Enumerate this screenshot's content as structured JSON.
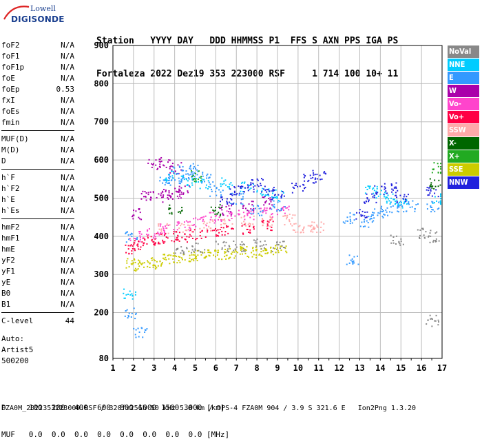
{
  "logo": {
    "top": "Lowell",
    "main": "DIGISONDE"
  },
  "header": {
    "line1": "Station   YYYY DAY   DDD HHMMSS P1  FFS S AXN PPS IGA PS",
    "line2": "Fortaleza 2022 Dez19 353 223000 RSF     1 714 100 10+ 11"
  },
  "params": [
    {
      "name": "foF2",
      "value": "N/A"
    },
    {
      "name": "foF1",
      "value": "N/A"
    },
    {
      "name": "foF1p",
      "value": "N/A"
    },
    {
      "name": "foE",
      "value": "N/A"
    },
    {
      "name": "foEp",
      "value": "0.53"
    },
    {
      "name": "fxI",
      "value": "N/A"
    },
    {
      "name": "foEs",
      "value": "N/A"
    },
    {
      "name": "fmin",
      "value": "N/A"
    },
    {
      "sep": true
    },
    {
      "name": "MUF(D)",
      "value": "N/A"
    },
    {
      "name": "M(D)",
      "value": "N/A"
    },
    {
      "name": "D",
      "value": "N/A"
    },
    {
      "sep": true
    },
    {
      "name": "h`F",
      "value": "N/A"
    },
    {
      "name": "h`F2",
      "value": "N/A"
    },
    {
      "name": "h`E",
      "value": "N/A"
    },
    {
      "name": "h`Es",
      "value": "N/A"
    },
    {
      "sep": true
    },
    {
      "name": "hmF2",
      "value": "N/A"
    },
    {
      "name": "hmF1",
      "value": "N/A"
    },
    {
      "name": "hmE",
      "value": "N/A"
    },
    {
      "name": "yF2",
      "value": "N/A"
    },
    {
      "name": "yF1",
      "value": "N/A"
    },
    {
      "name": "yE",
      "value": "N/A"
    },
    {
      "name": "B0",
      "value": "N/A"
    },
    {
      "name": "B1",
      "value": "N/A"
    },
    {
      "sep": true
    },
    {
      "name": "C-level",
      "value": "44"
    }
  ],
  "auto": {
    "label": "Auto:",
    "software": "Artist5",
    "version": "500200"
  },
  "legend": [
    {
      "label": "NoVal",
      "color": "#888888"
    },
    {
      "label": "NNE",
      "color": "#00ccff"
    },
    {
      "label": "E",
      "color": "#3399ff"
    },
    {
      "label": "W",
      "color": "#aa00aa"
    },
    {
      "label": "Vo-",
      "color": "#ff44cc"
    },
    {
      "label": "Vo+",
      "color": "#ff0044"
    },
    {
      "label": "SSW",
      "color": "#ffaaaa"
    },
    {
      "label": "X-",
      "color": "#006600"
    },
    {
      "label": "X+",
      "color": "#22aa22"
    },
    {
      "label": "SSE",
      "color": "#cccc00"
    },
    {
      "label": "NNW",
      "color": "#2222dd"
    }
  ],
  "footer": {
    "line1": "D     100  200  400  600  800 1000 1500 3000 [km]",
    "line2": "MUF   0.0  0.0  0.0  0.0  0.0  0.0  0.0  0.0 [MHz]",
    "line3": "FZA0M_2022353223000.RSF / 320fx256h 50 kHz 5.0 km / DPS-4 FZA0M 904 / 3.9 S 321.6 E   Ion2Png 1.3.20"
  },
  "chart_data": {
    "type": "scatter",
    "title": "",
    "xlabel": "",
    "ylabel": "",
    "xlim": [
      1,
      17
    ],
    "ylim": [
      80,
      900
    ],
    "x_ticks": [
      1,
      2,
      3,
      4,
      5,
      6,
      7,
      8,
      9,
      10,
      11,
      12,
      13,
      14,
      15,
      16,
      17
    ],
    "y_ticks": [
      80,
      200,
      300,
      400,
      500,
      600,
      700,
      800,
      900
    ],
    "grid": true,
    "series": [
      {
        "name": "SSE",
        "color": "#cccc00",
        "points": [
          [
            1.9,
            330
          ],
          [
            2.3,
            325
          ],
          [
            2.8,
            330
          ],
          [
            3.2,
            335
          ],
          [
            3.7,
            340
          ],
          [
            4.2,
            345
          ],
          [
            4.7,
            350
          ],
          [
            5.2,
            350
          ],
          [
            5.7,
            352
          ],
          [
            6.2,
            355
          ],
          [
            6.7,
            357
          ],
          [
            7.2,
            360
          ],
          [
            7.7,
            360
          ],
          [
            8.2,
            362
          ],
          [
            8.7,
            365
          ],
          [
            9.1,
            368
          ]
        ]
      },
      {
        "name": "SSW",
        "color": "#ffaaaa",
        "points": [
          [
            3.5,
            420
          ],
          [
            4.5,
            425
          ],
          [
            5.5,
            430
          ],
          [
            6.5,
            435
          ],
          [
            7.5,
            440
          ],
          [
            8.5,
            440
          ],
          [
            9.5,
            445
          ],
          [
            10.0,
            425
          ],
          [
            10.5,
            420
          ],
          [
            10.9,
            425
          ]
        ]
      },
      {
        "name": "Vo+",
        "color": "#ff0044",
        "points": [
          [
            1.9,
            370
          ],
          [
            2.2,
            380
          ],
          [
            2.7,
            390
          ],
          [
            3.2,
            395
          ],
          [
            3.8,
            400
          ],
          [
            4.3,
            400
          ],
          [
            5.0,
            405
          ],
          [
            5.8,
            410
          ],
          [
            6.5,
            415
          ],
          [
            7.5,
            420
          ],
          [
            8.5,
            430
          ]
        ]
      },
      {
        "name": "Vo-",
        "color": "#ff44cc",
        "points": [
          [
            2.1,
            400
          ],
          [
            2.9,
            410
          ],
          [
            3.6,
            420
          ],
          [
            4.4,
            430
          ],
          [
            5.2,
            440
          ],
          [
            6.0,
            450
          ],
          [
            6.8,
            455
          ],
          [
            7.6,
            460
          ],
          [
            8.4,
            465
          ],
          [
            9.2,
            470
          ]
        ]
      },
      {
        "name": "W",
        "color": "#aa00aa",
        "points": [
          [
            2.2,
            460
          ],
          [
            2.6,
            505
          ],
          [
            3.1,
            505
          ],
          [
            3.6,
            510
          ],
          [
            4.0,
            515
          ],
          [
            4.4,
            520
          ],
          [
            3.0,
            590
          ],
          [
            3.5,
            595
          ],
          [
            4.0,
            580
          ],
          [
            6.5,
            470
          ],
          [
            7.5,
            480
          ],
          [
            8.5,
            490
          ]
        ]
      },
      {
        "name": "E",
        "color": "#3399ff",
        "points": [
          [
            1.9,
            400
          ],
          [
            3.5,
            550
          ],
          [
            4.0,
            548
          ],
          [
            4.5,
            552
          ],
          [
            5.0,
            555
          ],
          [
            5.5,
            550
          ],
          [
            4.2,
            575
          ],
          [
            4.8,
            580
          ],
          [
            6.0,
            520
          ],
          [
            7.0,
            500
          ],
          [
            8.0,
            470
          ],
          [
            9.0,
            480
          ],
          [
            12.5,
            450
          ],
          [
            13.3,
            440
          ],
          [
            13.8,
            460
          ],
          [
            14.3,
            470
          ],
          [
            14.8,
            480
          ],
          [
            15.5,
            480
          ],
          [
            16.5,
            480
          ],
          [
            1.8,
            200
          ],
          [
            2.3,
            150
          ],
          [
            12.6,
            340
          ]
        ]
      },
      {
        "name": "NNE",
        "color": "#00ccff",
        "points": [
          [
            1.8,
            250
          ],
          [
            3.8,
            560
          ],
          [
            4.6,
            545
          ],
          [
            5.3,
            540
          ],
          [
            6.5,
            540
          ],
          [
            7.5,
            530
          ],
          [
            8.3,
            520
          ],
          [
            9.0,
            510
          ],
          [
            13.5,
            520
          ],
          [
            14.0,
            510
          ],
          [
            14.5,
            500
          ],
          [
            15.0,
            490
          ],
          [
            16.8,
            500
          ]
        ]
      },
      {
        "name": "NNW",
        "color": "#2222dd",
        "points": [
          [
            6.5,
            500
          ],
          [
            7.0,
            520
          ],
          [
            7.5,
            530
          ],
          [
            8.0,
            540
          ],
          [
            8.5,
            520
          ],
          [
            9.0,
            510
          ],
          [
            10.0,
            530
          ],
          [
            10.5,
            550
          ],
          [
            11.0,
            560
          ],
          [
            13.0,
            460
          ],
          [
            13.5,
            500
          ],
          [
            14.0,
            520
          ],
          [
            14.5,
            530
          ],
          [
            15.0,
            500
          ],
          [
            16.5,
            520
          ]
        ]
      },
      {
        "name": "X-",
        "color": "#006600",
        "points": [
          [
            16.7,
            540
          ],
          [
            4.0,
            470
          ],
          [
            6.0,
            470
          ]
        ]
      },
      {
        "name": "X+",
        "color": "#22aa22",
        "points": [
          [
            16.8,
            580
          ],
          [
            5.0,
            560
          ]
        ]
      },
      {
        "name": "NoVal",
        "color": "#888888",
        "points": [
          [
            16.1,
            410
          ],
          [
            16.6,
            400
          ],
          [
            14.8,
            390
          ],
          [
            4.3,
            360
          ],
          [
            5.1,
            370
          ],
          [
            6.3,
            375
          ],
          [
            7.1,
            375
          ],
          [
            8.1,
            380
          ],
          [
            9.0,
            375
          ],
          [
            16.5,
            180
          ]
        ]
      }
    ]
  }
}
